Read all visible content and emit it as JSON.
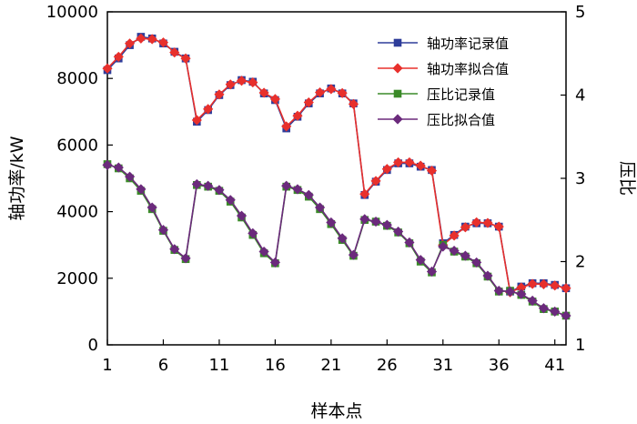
{
  "chart_data": {
    "type": "line",
    "xlabel": "样本点",
    "ylabel_left": "轴功率/kW",
    "ylabel_right": "压比",
    "x": [
      1,
      2,
      3,
      4,
      5,
      6,
      7,
      8,
      9,
      10,
      11,
      12,
      13,
      14,
      15,
      16,
      17,
      18,
      19,
      20,
      21,
      22,
      23,
      24,
      25,
      26,
      27,
      28,
      29,
      30,
      31,
      32,
      33,
      34,
      35,
      36,
      37,
      38,
      39,
      40,
      41,
      42
    ],
    "xticks": [
      1,
      6,
      11,
      16,
      21,
      26,
      31,
      36,
      41
    ],
    "xlim": [
      1,
      42
    ],
    "ylim_left": [
      0,
      10000
    ],
    "yticks_left": [
      0,
      2000,
      4000,
      6000,
      8000,
      10000
    ],
    "ylim_right": [
      1,
      5
    ],
    "yticks_right": [
      1,
      2,
      3,
      4,
      5
    ],
    "grid": false,
    "legend_position": "top-right",
    "series": [
      {
        "name": "轴功率记录值",
        "axis": "left",
        "color": "#2e3d9a",
        "marker": "square",
        "values": [
          8250,
          8600,
          9000,
          9250,
          9200,
          9050,
          8800,
          8600,
          6700,
          7050,
          7500,
          7800,
          7950,
          7900,
          7550,
          7350,
          6500,
          6850,
          7250,
          7550,
          7700,
          7550,
          7250,
          4500,
          4900,
          5250,
          5450,
          5450,
          5350,
          5250,
          3050,
          3300,
          3550,
          3650,
          3650,
          3550,
          1600,
          1750,
          1850,
          1850,
          1800,
          1700
        ]
      },
      {
        "name": "轴功率拟合值",
        "axis": "left",
        "color": "#e8302c",
        "marker": "diamond",
        "values": [
          8300,
          8650,
          9050,
          9200,
          9180,
          9080,
          8780,
          8600,
          6750,
          7080,
          7520,
          7820,
          7930,
          7880,
          7570,
          7380,
          6560,
          6880,
          7280,
          7580,
          7680,
          7560,
          7230,
          4530,
          4920,
          5280,
          5480,
          5480,
          5380,
          5230,
          3000,
          3280,
          3530,
          3680,
          3660,
          3550,
          1580,
          1720,
          1830,
          1820,
          1780,
          1700
        ]
      },
      {
        "name": "压比记录值",
        "axis": "right",
        "color": "#3a8a28",
        "marker": "square",
        "values": [
          3.17,
          3.12,
          3.0,
          2.85,
          2.63,
          2.37,
          2.14,
          2.03,
          2.92,
          2.9,
          2.85,
          2.72,
          2.53,
          2.32,
          2.1,
          1.98,
          2.9,
          2.86,
          2.78,
          2.63,
          2.45,
          2.26,
          2.07,
          2.5,
          2.48,
          2.43,
          2.35,
          2.22,
          2.0,
          1.87,
          2.2,
          2.12,
          2.06,
          1.98,
          1.82,
          1.64,
          1.65,
          1.6,
          1.52,
          1.43,
          1.4,
          1.35
        ]
      },
      {
        "name": "压比拟合值",
        "axis": "right",
        "color": "#6b2a7c",
        "marker": "diamond",
        "values": [
          3.16,
          3.13,
          3.02,
          2.87,
          2.65,
          2.38,
          2.15,
          2.04,
          2.93,
          2.91,
          2.86,
          2.74,
          2.55,
          2.34,
          2.12,
          1.99,
          2.91,
          2.87,
          2.8,
          2.65,
          2.47,
          2.28,
          2.08,
          2.51,
          2.48,
          2.44,
          2.36,
          2.23,
          2.02,
          1.88,
          2.18,
          2.13,
          2.07,
          1.99,
          1.83,
          1.65,
          1.64,
          1.61,
          1.53,
          1.44,
          1.4,
          1.35
        ]
      }
    ]
  }
}
